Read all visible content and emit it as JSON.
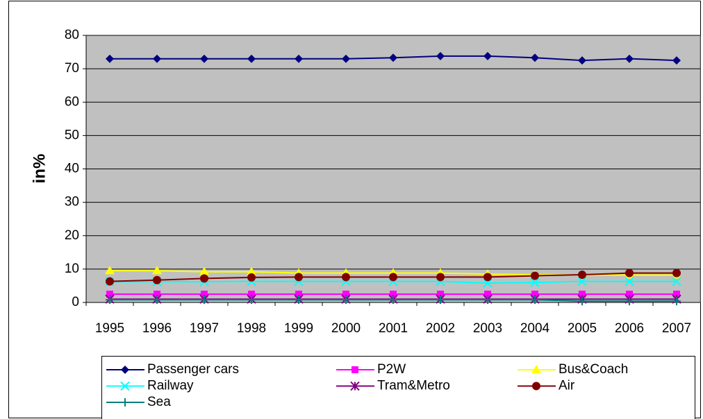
{
  "chart_data": {
    "type": "line",
    "y_label": "in%",
    "categories": [
      "1995",
      "1996",
      "1997",
      "1998",
      "1999",
      "2000",
      "2001",
      "2002",
      "2003",
      "2004",
      "2005",
      "2006",
      "2007"
    ],
    "ylim": [
      0,
      80
    ],
    "yticks": [
      0,
      10,
      20,
      30,
      40,
      50,
      60,
      70,
      80
    ],
    "grid": true,
    "series": [
      {
        "name": "Passenger cars",
        "color": "#000080",
        "marker": "diamond",
        "values": [
          73,
          73,
          73,
          73,
          73,
          73,
          73.3,
          73.8,
          73.8,
          73.3,
          72.5,
          73,
          72.5
        ]
      },
      {
        "name": "P2W",
        "color": "#ff00ff",
        "marker": "square",
        "values": [
          2.5,
          2.5,
          2.5,
          2.5,
          2.5,
          2.5,
          2.5,
          2.5,
          2.5,
          2.5,
          2.5,
          2.5,
          2.5
        ]
      },
      {
        "name": "Bus&Coach",
        "color": "#ffff00",
        "marker": "triangle",
        "values": [
          9.5,
          9.5,
          9.2,
          9.2,
          8.8,
          8.8,
          8.8,
          8.8,
          8.5,
          8.3,
          8.2,
          8.2,
          8.2
        ]
      },
      {
        "name": "Railway",
        "color": "#00ffff",
        "marker": "x",
        "values": [
          6.2,
          6.2,
          6.2,
          6.3,
          6.3,
          6.3,
          6.3,
          6.3,
          5.8,
          6,
          6.3,
          6.3,
          6.3
        ]
      },
      {
        "name": "Tram&Metro",
        "color": "#800080",
        "marker": "star",
        "values": [
          1,
          1,
          1,
          1,
          1,
          1,
          1,
          1,
          1,
          1,
          1,
          1,
          1
        ]
      },
      {
        "name": "Air",
        "color": "#800000",
        "marker": "circle",
        "values": [
          6.3,
          6.7,
          7.2,
          7.5,
          7.6,
          7.6,
          7.6,
          7.6,
          7.6,
          8,
          8.3,
          8.8,
          8.8
        ]
      },
      {
        "name": "Sea",
        "color": "#008080",
        "marker": "plus",
        "values": [
          0.8,
          0.8,
          0.8,
          0.8,
          0.8,
          0.8,
          0.8,
          0.8,
          0.8,
          0.8,
          0.4,
          0.4,
          0.4
        ]
      }
    ]
  }
}
